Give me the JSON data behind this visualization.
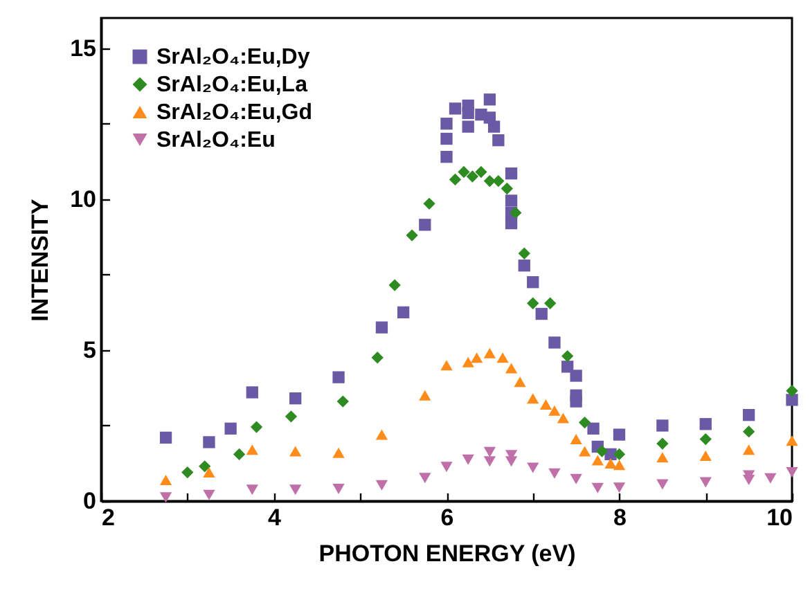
{
  "chart_data": {
    "type": "scatter",
    "xlabel": "PHOTON ENERGY (eV)",
    "ylabel": "INTENSITY",
    "xlim": [
      2,
      10
    ],
    "ylim": [
      0,
      16
    ],
    "xticks": [
      2,
      {
        "value": 3,
        "label": null
      },
      4,
      {
        "value": 5,
        "label": null
      },
      6,
      {
        "value": 7,
        "label": null
      },
      8,
      {
        "value": 9,
        "label": null
      },
      10
    ],
    "yticks": [
      0,
      {
        "value": 2.5,
        "label": null
      },
      5,
      {
        "value": 7.5,
        "label": null
      },
      10,
      {
        "value": 12.5,
        "label": null
      },
      15
    ],
    "legend": "top left",
    "series": [
      {
        "name": "SrAl₂O₄:Eu,Dy",
        "color": "#6a5aa6",
        "marker": "square",
        "x": [
          2.75,
          3.25,
          3.5,
          3.75,
          4.25,
          4.75,
          5.25,
          5.5,
          5.75,
          6.0,
          6.0,
          6.0,
          6.1,
          6.25,
          6.25,
          6.25,
          6.4,
          6.5,
          6.5,
          6.55,
          6.6,
          6.75,
          6.75,
          6.75,
          6.75,
          6.9,
          7.0,
          7.1,
          7.25,
          7.4,
          7.5,
          7.5,
          7.5,
          7.7,
          7.75,
          7.9,
          8.0,
          8.5,
          9.0,
          9.5,
          10.0
        ],
        "values": [
          2.1,
          1.95,
          2.4,
          3.6,
          3.4,
          4.1,
          5.75,
          6.25,
          9.15,
          11.4,
          12.0,
          12.5,
          13.0,
          13.1,
          12.85,
          12.4,
          12.8,
          13.3,
          12.7,
          12.4,
          11.95,
          10.85,
          9.95,
          9.55,
          9.2,
          7.8,
          7.25,
          6.2,
          5.25,
          4.45,
          4.15,
          3.5,
          3.3,
          2.4,
          1.8,
          1.55,
          2.2,
          2.5,
          2.55,
          2.85,
          3.35
        ]
      },
      {
        "name": "SrAl₂O₄:Eu,La",
        "color": "#2e8b22",
        "marker": "diamond",
        "x": [
          3.0,
          3.2,
          3.6,
          3.8,
          4.2,
          4.8,
          5.2,
          5.4,
          5.6,
          5.8,
          6.1,
          6.2,
          6.3,
          6.4,
          6.5,
          6.6,
          6.7,
          6.8,
          6.9,
          7.0,
          7.2,
          7.4,
          7.6,
          7.8,
          8.0,
          8.5,
          9.0,
          9.5,
          10.0
        ],
        "values": [
          0.95,
          1.15,
          1.55,
          2.45,
          2.8,
          3.3,
          4.75,
          7.15,
          8.8,
          9.85,
          10.65,
          10.9,
          10.75,
          10.9,
          10.6,
          10.6,
          10.35,
          9.55,
          8.2,
          6.55,
          6.55,
          4.8,
          2.6,
          1.65,
          1.55,
          1.9,
          2.05,
          2.3,
          3.65
        ]
      },
      {
        "name": "SrAl₂O₄:Eu,Gd",
        "color": "#ff8c1a",
        "marker": "triangle",
        "x": [
          2.75,
          3.25,
          3.75,
          4.25,
          4.75,
          5.25,
          5.75,
          6.0,
          6.25,
          6.35,
          6.5,
          6.65,
          6.75,
          6.85,
          7.0,
          7.15,
          7.25,
          7.35,
          7.5,
          7.6,
          7.75,
          7.9,
          8.0,
          8.5,
          9.0,
          9.5,
          10.0
        ],
        "values": [
          0.7,
          0.95,
          1.7,
          1.65,
          1.6,
          2.2,
          3.5,
          4.5,
          4.6,
          4.75,
          4.9,
          4.75,
          4.4,
          3.95,
          3.4,
          3.2,
          3.0,
          2.75,
          2.05,
          1.65,
          1.35,
          1.25,
          1.2,
          1.45,
          1.5,
          1.7,
          2.0
        ]
      },
      {
        "name": "SrAl₂O₄:Eu",
        "color": "#c070a8",
        "marker": "triangle-down",
        "x": [
          2.75,
          3.25,
          3.75,
          4.25,
          4.75,
          5.25,
          5.75,
          6.0,
          6.25,
          6.5,
          6.5,
          6.75,
          6.75,
          7.0,
          7.25,
          7.5,
          7.75,
          8.0,
          8.5,
          9.0,
          9.5,
          9.5,
          9.75,
          10.0
        ],
        "values": [
          0.12,
          0.2,
          0.37,
          0.37,
          0.4,
          0.52,
          0.76,
          1.13,
          1.37,
          1.62,
          1.31,
          1.52,
          1.31,
          1.1,
          0.91,
          0.73,
          0.43,
          0.44,
          0.55,
          0.62,
          0.85,
          0.7,
          0.75,
          0.95
        ]
      }
    ]
  }
}
